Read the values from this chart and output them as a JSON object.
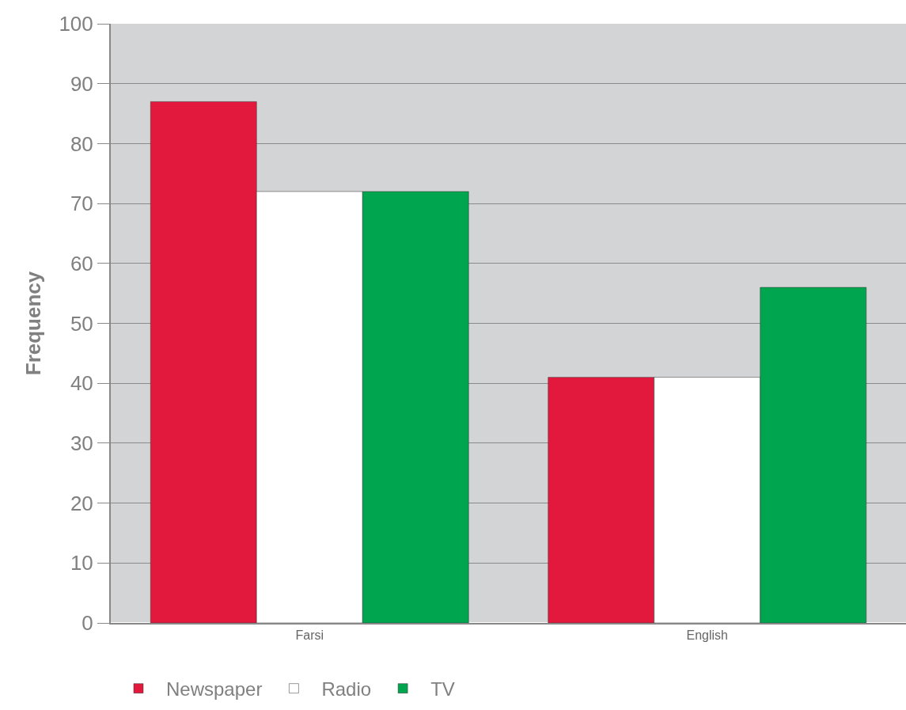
{
  "chart_data": {
    "type": "bar",
    "ylabel": "Frequency",
    "categories": [
      "Farsi",
      "English"
    ],
    "series": [
      {
        "name": "Newspaper",
        "color": "#e3183d",
        "values": [
          87,
          41
        ]
      },
      {
        "name": "Radio",
        "color": "#ffffff",
        "values": [
          72,
          41
        ]
      },
      {
        "name": "TV",
        "color": "#00a64f",
        "values": [
          72,
          56
        ]
      }
    ],
    "ylim": [
      0,
      100
    ],
    "yticks": [
      0,
      10,
      20,
      30,
      40,
      50,
      60,
      70,
      80,
      90,
      100
    ],
    "grid": "y",
    "legend": "bottom"
  }
}
